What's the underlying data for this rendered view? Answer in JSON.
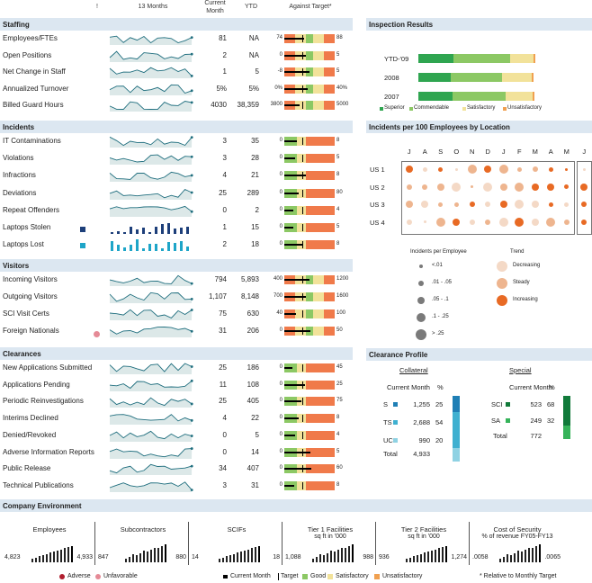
{
  "header": {
    "col_bang": "!",
    "col_13": "13 Months",
    "col_cm": "Current\nMonth",
    "col_ytd": "YTD",
    "col_target": "Against Target*"
  },
  "sections": {
    "staffing": "Staffing",
    "incidents": "Incidents",
    "visitors": "Visitors",
    "clearances": "Clearances",
    "env": "Company Environment",
    "inspection": "Inspection Results",
    "ipe": "Incidents per 100 Employees by Location",
    "clearance_profile": "Clearance Profile"
  },
  "staffing": [
    {
      "label": "Employees/FTEs",
      "cm": "81",
      "ytd": "NA",
      "lo": "74",
      "hi": "88"
    },
    {
      "label": "Open Positions",
      "cm": "2",
      "ytd": "NA",
      "lo": "0",
      "hi": "5"
    },
    {
      "label": "Net Change in Staff",
      "cm": "1",
      "ytd": "5",
      "lo": "-8",
      "hi": "5"
    },
    {
      "label": "Annualized Turnover",
      "cm": "5%",
      "ytd": "5%",
      "lo": "0%",
      "hi": "40%"
    },
    {
      "label": "Billed Guard Hours",
      "cm": "4030",
      "ytd": "38,359",
      "lo": "3800",
      "hi": "5000"
    }
  ],
  "incidents": [
    {
      "label": "IT Contaminations",
      "cm": "3",
      "ytd": "35",
      "lo": "0",
      "hi": "8"
    },
    {
      "label": "Violations",
      "cm": "3",
      "ytd": "28",
      "lo": "0",
      "hi": "5"
    },
    {
      "label": "Infractions",
      "cm": "4",
      "ytd": "21",
      "lo": "0",
      "hi": "8"
    },
    {
      "label": "Deviations",
      "cm": "25",
      "ytd": "289",
      "lo": "0",
      "hi": "80"
    },
    {
      "label": "Repeat Offenders",
      "cm": "0",
      "ytd": "2",
      "lo": "0",
      "hi": "4"
    },
    {
      "label": "Laptops Stolen",
      "cm": "1",
      "ytd": "15",
      "lo": "0",
      "hi": "5"
    },
    {
      "label": "Laptops Lost",
      "cm": "2",
      "ytd": "18",
      "lo": "0",
      "hi": "8"
    }
  ],
  "visitors": [
    {
      "label": "Incoming Visitors",
      "cm": "794",
      "ytd": "5,893",
      "lo": "400",
      "hi": "1200"
    },
    {
      "label": "Outgoing Visitors",
      "cm": "1,107",
      "ytd": "8,148",
      "lo": "700",
      "hi": "1600"
    },
    {
      "label": "SCI Visit Certs",
      "cm": "75",
      "ytd": "630",
      "lo": "40",
      "hi": "100"
    },
    {
      "label": "Foreign Nationals",
      "cm": "31",
      "ytd": "206",
      "lo": "0",
      "hi": "50"
    }
  ],
  "clearances": [
    {
      "label": "New Applications Submitted",
      "cm": "25",
      "ytd": "186",
      "lo": "0",
      "hi": "45"
    },
    {
      "label": "Applications Pending",
      "cm": "11",
      "ytd": "108",
      "lo": "0",
      "hi": "25"
    },
    {
      "label": "Periodic Reinvestigations",
      "cm": "25",
      "ytd": "405",
      "lo": "0",
      "hi": "75"
    },
    {
      "label": "Interims Declined",
      "cm": "4",
      "ytd": "22",
      "lo": "0",
      "hi": "8"
    },
    {
      "label": "Denied/Revoked",
      "cm": "0",
      "ytd": "5",
      "lo": "0",
      "hi": "4"
    },
    {
      "label": "Adverse Information Reports",
      "cm": "0",
      "ytd": "14",
      "lo": "0",
      "hi": "5"
    },
    {
      "label": "Public Release",
      "cm": "34",
      "ytd": "407",
      "lo": "0",
      "hi": "60"
    },
    {
      "label": "Technical Publications",
      "cm": "3",
      "ytd": "31",
      "lo": "0",
      "hi": "8"
    }
  ],
  "inspection": {
    "rows": [
      {
        "label": "YTD-'09",
        "superior": 0.26,
        "commendable": 0.42,
        "satisfactory": 0.17,
        "unsat": 0.01
      },
      {
        "label": "2008",
        "superior": 0.24,
        "commendable": 0.38,
        "satisfactory": 0.22,
        "unsat": 0.01
      },
      {
        "label": "2007",
        "superior": 0.25,
        "commendable": 0.39,
        "satisfactory": 0.2,
        "unsat": 0.01
      }
    ],
    "legend": [
      "Superior",
      "Commendable",
      "Satisfactory",
      "Unsatisfactory"
    ],
    "colors": [
      "#2fa550",
      "#8cc864",
      "#f2e29a",
      "#f0a050"
    ]
  },
  "ipe": {
    "months": [
      "J",
      "A",
      "S",
      "O",
      "N",
      "D",
      "J",
      "F",
      "M",
      "A",
      "M",
      "J"
    ],
    "locations": [
      "US 1",
      "US 2",
      "US 3",
      "US 4"
    ],
    "legend_size_title": "Incidents per Employee",
    "legend_sizes": [
      "<.01",
      ".01 - .05",
      ".05 - .1",
      ".1 - .25",
      "> .25"
    ],
    "legend_trend_title": "Trend",
    "legend_trends": [
      "Decreasing",
      "Steady",
      "Increasing"
    ]
  },
  "clearance_profile": {
    "collateral_title": "Collateral",
    "special_title": "Special",
    "cm_label": "Current Month",
    "pct_label": "%",
    "collateral": [
      {
        "k": "S",
        "v": "1,255",
        "p": "25"
      },
      {
        "k": "TS",
        "v": "2,688",
        "p": "54"
      },
      {
        "k": "UC",
        "v": "990",
        "p": "20"
      }
    ],
    "collateral_total_label": "Total",
    "collateral_total": "4,933",
    "special": [
      {
        "k": "SCI",
        "v": "523",
        "p": "68"
      },
      {
        "k": "SA",
        "v": "249",
        "p": "32"
      }
    ],
    "special_total_label": "Total",
    "special_total": "772"
  },
  "env": [
    {
      "title": "Employees",
      "sub": "",
      "lo": "4,823",
      "hi": "4,933"
    },
    {
      "title": "Subcontractors",
      "sub": "",
      "lo": "847",
      "hi": "880"
    },
    {
      "title": "SCIFs",
      "sub": "",
      "lo": "14",
      "hi": "18"
    },
    {
      "title": "Tier 1 Facilities",
      "sub": "sq ft in '000",
      "lo": "1,088",
      "hi": "988"
    },
    {
      "title": "Tier 2 Facilities",
      "sub": "sq ft in '000",
      "lo": "936",
      "hi": "1,274"
    },
    {
      "title": "Cost of Security",
      "sub": "% of revenue FY05-FY13",
      "lo": ".0058",
      "hi": ".0065"
    }
  ],
  "footer": {
    "adverse": "Adverse",
    "unfavorable": "Unfavorable",
    "current_month": "Current Month",
    "target": "Target",
    "good": "Good",
    "satisfactory": "Satisfactory",
    "unsatisfactory": "Unsatisfactory",
    "relative": "* Relative to Monthly Target"
  }
}
